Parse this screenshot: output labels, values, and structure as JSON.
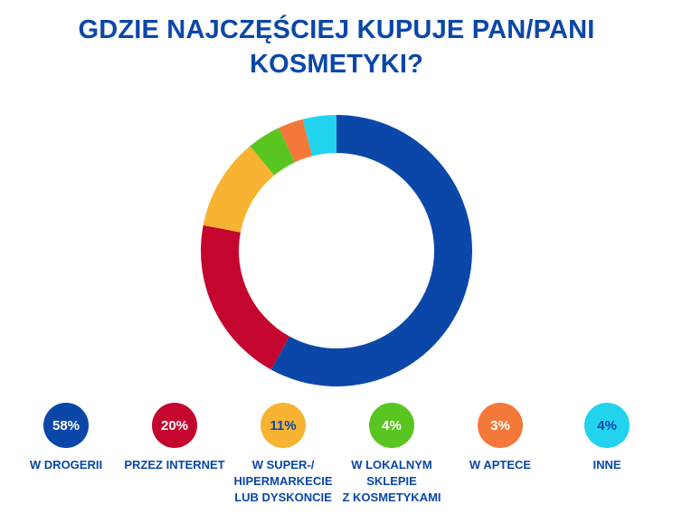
{
  "title": {
    "line1": "GDZIE NAJCZĘŚCIEJ KUPUJE PAN/PANI",
    "line2": "KOSMETYKI?"
  },
  "chart_data": {
    "type": "pie",
    "donut": true,
    "legend_position": "bottom",
    "slices": [
      {
        "label": "W DROGERII",
        "value": 58,
        "display": "58%",
        "color": "#0a47a9",
        "text_color": "#ffffff"
      },
      {
        "label": "PRZEZ INTERNET",
        "value": 20,
        "display": "20%",
        "color": "#c4062f",
        "text_color": "#ffffff"
      },
      {
        "label": "W SUPER-/\nHIPERMARKECIE\nLUB DYSKONCIE",
        "value": 11,
        "display": "11%",
        "color": "#f8b333",
        "text_color": "#0a47a9"
      },
      {
        "label": "W LOKALNYM\nSKLEPIE\nZ KOSMETYKAMI",
        "value": 4,
        "display": "4%",
        "color": "#58c520",
        "text_color": "#ffffff"
      },
      {
        "label": "W APTECE",
        "value": 3,
        "display": "3%",
        "color": "#f4783a",
        "text_color": "#ffffff"
      },
      {
        "label": "INNE",
        "value": 4,
        "display": "4%",
        "color": "#22d3ee",
        "text_color": "#0a47a9"
      }
    ]
  }
}
